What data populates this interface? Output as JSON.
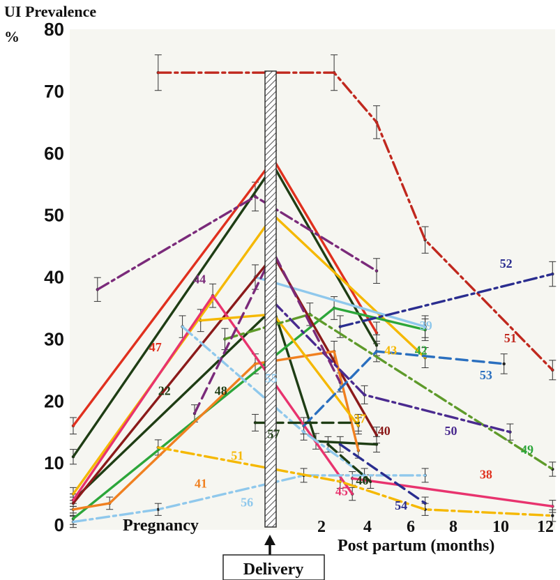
{
  "chart_data": {
    "type": "line",
    "ylabel_line1": "UI Prevalence",
    "ylabel_line2": "%",
    "ylim": [
      0,
      80
    ],
    "yticks": [
      "0",
      "10",
      "20",
      "30",
      "40",
      "50",
      "60",
      "70",
      "80"
    ],
    "xticks": [
      "2",
      "4",
      "6",
      "8",
      "10",
      "12"
    ],
    "xlabel": "Post partum (months)",
    "pregnancy_label": "Pregnancy",
    "delivery_label": "Delivery",
    "grid": false,
    "colors": {
      "background": "#f6f6f1",
      "red": "#e0301e",
      "darkgreen": "#1e3d14",
      "green": "#2ca63a",
      "yellow": "#f5b800",
      "orange": "#f08020",
      "pink": "#e8336e",
      "darkred": "#8b1a1a",
      "lightblue": "#8fc8ec",
      "blue": "#2a6fbf",
      "navy": "#2a2d8f",
      "purple": "#7a2a7a",
      "indigo": "#4a2a8f",
      "brickred": "#c0281e",
      "olive": "#5e9a2a"
    },
    "series": [
      {
        "name": "47",
        "color": "red",
        "dash": "solid",
        "points": [
          [
            0,
            16
          ],
          [
            330,
            59
          ],
          [
            500,
            31
          ]
        ]
      },
      {
        "name": "22",
        "color": "darkgreen",
        "dash": "solid",
        "points": [
          [
            0,
            11
          ],
          [
            330,
            58
          ],
          [
            500,
            29
          ]
        ]
      },
      {
        "name": "48",
        "color": "darkgreen",
        "dash": "solid",
        "points": [
          [
            0,
            4
          ],
          [
            330,
            35
          ],
          [
            400,
            13.5
          ],
          [
            500,
            13
          ]
        ]
      },
      {
        "name": "43",
        "color": "yellow",
        "dash": "solid",
        "points": [
          [
            0,
            5
          ],
          [
            330,
            50
          ],
          [
            580,
            27
          ]
        ]
      },
      {
        "name": "42",
        "color": "green",
        "dash": "solid",
        "points": [
          [
            0,
            1
          ],
          [
            430,
            35
          ],
          [
            580,
            31.5
          ]
        ]
      },
      {
        "name": "39",
        "color": "lightblue",
        "dash": "solid",
        "points": [
          [
            300,
            40
          ],
          [
            580,
            32
          ]
        ]
      },
      {
        "name": "40",
        "color": "darkred",
        "dash": "solid",
        "points": [
          [
            0,
            3.5
          ],
          [
            330,
            43.5
          ],
          [
            500,
            14.5
          ]
        ]
      },
      {
        "name": "41",
        "color": "orange",
        "dash": "solid",
        "points": [
          [
            0,
            2.5
          ],
          [
            60,
            3.5
          ],
          [
            300,
            26
          ],
          [
            430,
            28
          ],
          [
            470,
            12
          ]
        ]
      },
      {
        "name": "45",
        "color": "pink",
        "dash": "solid",
        "points": [
          [
            0,
            4
          ],
          [
            230,
            37
          ],
          [
            460,
            5
          ]
        ]
      },
      {
        "name": "38",
        "color": "pink",
        "dash": "solid",
        "points": [
          [
            460,
            7.5
          ],
          [
            790,
            3
          ]
        ]
      },
      {
        "name": "37",
        "color": "yellow",
        "dash": "solid",
        "points": [
          [
            210,
            33
          ],
          [
            330,
            34
          ],
          [
            470,
            16
          ]
        ]
      },
      {
        "name": "51",
        "color": "brickred",
        "dash": "dashdot",
        "points": [
          [
            140,
            73
          ],
          [
            430,
            73
          ],
          [
            500,
            65
          ],
          [
            580,
            46
          ],
          [
            790,
            25
          ]
        ]
      },
      {
        "name": "44",
        "color": "purple",
        "dash": "dashdot",
        "points": [
          [
            40,
            38
          ],
          [
            300,
            53
          ],
          [
            500,
            41
          ]
        ]
      },
      {
        "name": "52",
        "color": "navy",
        "dash": "dashdot",
        "points": [
          [
            440,
            32
          ],
          [
            790,
            40.5
          ]
        ]
      },
      {
        "name": "53",
        "color": "blue",
        "dash": "dashed",
        "points": [
          [
            380,
            16
          ],
          [
            500,
            28
          ],
          [
            710,
            26
          ]
        ]
      },
      {
        "name": "49",
        "color": "olive",
        "dash": "dashdot",
        "points": [
          [
            250,
            30
          ],
          [
            390,
            34
          ],
          [
            790,
            9
          ]
        ]
      },
      {
        "name": "50",
        "color": "indigo",
        "dash": "dashdot",
        "points": [
          [
            330,
            36
          ],
          [
            480,
            21
          ],
          [
            720,
            15
          ]
        ]
      },
      {
        "name": "55",
        "color": "lightblue",
        "dash": "dashdot",
        "points": [
          [
            180,
            32
          ],
          [
            380,
            15
          ],
          [
            480,
            8
          ]
        ]
      },
      {
        "name": "57",
        "color": "darkgreen",
        "dash": "dashed",
        "points": [
          [
            300,
            16.5
          ],
          [
            470,
            16.5
          ]
        ]
      },
      {
        "name": "56",
        "color": "lightblue",
        "dash": "dashdot",
        "points": [
          [
            0,
            0.5
          ],
          [
            140,
            2.5
          ],
          [
            380,
            8
          ],
          [
            580,
            8
          ]
        ]
      },
      {
        "name": "54",
        "color": "navy",
        "dash": "dashed",
        "points": [
          [
            440,
            13
          ],
          [
            580,
            3.5
          ]
        ]
      },
      {
        "name": "46",
        "color": "darkgreen",
        "dash": "dashed",
        "points": [
          [
            420,
            13
          ],
          [
            490,
            7
          ]
        ]
      },
      {
        "name": "51",
        "color": "yellow",
        "dash": "dashdot",
        "points": [
          [
            140,
            12.5
          ],
          [
            440,
            7
          ],
          [
            580,
            2.5
          ],
          [
            790,
            1.5
          ]
        ]
      },
      {
        "name": "",
        "color": "purple",
        "dash": "dashed",
        "points": [
          [
            200,
            18
          ],
          [
            330,
            44
          ],
          [
            440,
            23
          ]
        ]
      }
    ],
    "series_labels": [
      {
        "text": "47",
        "color": "red",
        "x": 125,
        "y": 28
      },
      {
        "text": "22",
        "color": "darkgreen",
        "x": 140,
        "y": 21
      },
      {
        "text": "44",
        "color": "purple",
        "x": 198,
        "y": 39
      },
      {
        "text": "48",
        "color": "darkgreen",
        "x": 233,
        "y": 21
      },
      {
        "text": "41",
        "color": "orange",
        "x": 200,
        "y": 6
      },
      {
        "text": "51",
        "color": "yellow",
        "x": 260,
        "y": 10.5
      },
      {
        "text": "56",
        "color": "lightblue",
        "x": 276,
        "y": 3
      },
      {
        "text": "55",
        "color": "lightblue",
        "x": 316,
        "y": 23
      },
      {
        "text": "57",
        "color": "darkgreen",
        "x": 320,
        "y": 14
      },
      {
        "text": "45",
        "color": "pink",
        "x": 432,
        "y": 4.8
      },
      {
        "text": "46",
        "color": "darkgreen",
        "x": 466,
        "y": 6.5
      },
      {
        "text": "37",
        "color": "yellow",
        "x": 462,
        "y": 16.5
      },
      {
        "text": "40",
        "color": "darkred",
        "x": 502,
        "y": 14.5
      },
      {
        "text": "43",
        "color": "yellow",
        "x": 513,
        "y": 27.5
      },
      {
        "text": "42",
        "color": "green",
        "x": 563,
        "y": 27.5
      },
      {
        "text": "39",
        "color": "lightblue",
        "x": 571,
        "y": 31.5
      },
      {
        "text": "54",
        "color": "navy",
        "x": 530,
        "y": 2.5
      },
      {
        "text": "50",
        "color": "indigo",
        "x": 612,
        "y": 14.5
      },
      {
        "text": "53",
        "color": "blue",
        "x": 670,
        "y": 23.5
      },
      {
        "text": "38",
        "color": "red",
        "x": 670,
        "y": 7.5
      },
      {
        "text": "51",
        "color": "brickred",
        "x": 710,
        "y": 29.5
      },
      {
        "text": "52",
        "color": "navy",
        "x": 703,
        "y": 41.5
      },
      {
        "text": "49",
        "color": "green",
        "x": 738,
        "y": 11.5
      }
    ]
  }
}
